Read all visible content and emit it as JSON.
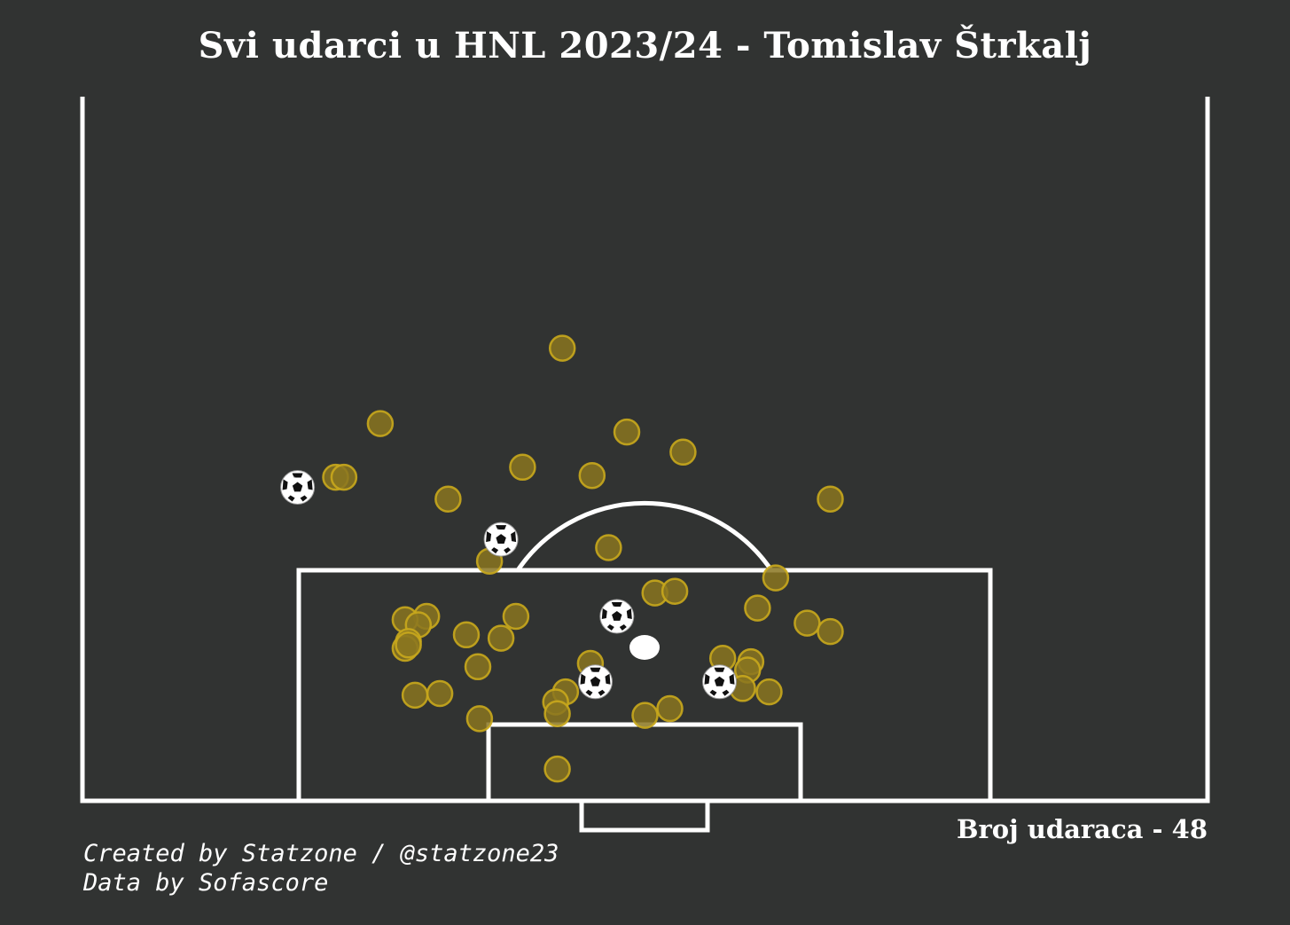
{
  "title": "Svi udarci u HNL 2023/24 - Tomislav Štrkalj",
  "shot_count_label": "Broj udaraca - 48",
  "credits": {
    "created": "Created by Statzone / @statzone23",
    "data": "Data by Sofascore"
  },
  "colors": {
    "background": "#313332",
    "lines": "#ffffff",
    "shot_fill": "#8a7520",
    "shot_edge": "#c9a81c"
  },
  "legend": {
    "shot": "circle",
    "goal": "football-icon"
  },
  "chart_data": {
    "type": "scatter",
    "x_range": [
      0,
      68
    ],
    "y_range": [
      0,
      42
    ],
    "series": [
      {
        "kind": "shot",
        "points": [
          [
            29.0,
            27.0
          ],
          [
            18.0,
            22.5
          ],
          [
            32.9,
            22.0
          ],
          [
            36.3,
            20.8
          ],
          [
            15.3,
            19.3
          ],
          [
            15.8,
            19.3
          ],
          [
            26.6,
            19.9
          ],
          [
            30.8,
            19.4
          ],
          [
            45.2,
            18.0
          ],
          [
            22.1,
            18.0
          ],
          [
            31.8,
            15.1
          ],
          [
            24.6,
            14.3
          ],
          [
            41.9,
            13.3
          ],
          [
            34.6,
            12.4
          ],
          [
            35.8,
            12.5
          ],
          [
            40.8,
            11.5
          ],
          [
            20.8,
            11.0
          ],
          [
            43.8,
            10.6
          ],
          [
            45.2,
            10.1
          ],
          [
            19.5,
            10.8
          ],
          [
            20.3,
            10.5
          ],
          [
            26.2,
            11.0
          ],
          [
            23.2,
            9.9
          ],
          [
            25.3,
            9.7
          ],
          [
            19.7,
            9.5
          ],
          [
            19.5,
            9.1
          ],
          [
            19.7,
            9.3
          ],
          [
            23.9,
            8.0
          ],
          [
            30.7,
            8.2
          ],
          [
            38.7,
            8.5
          ],
          [
            40.4,
            8.3
          ],
          [
            40.2,
            7.8
          ],
          [
            39.9,
            6.7
          ],
          [
            41.5,
            6.5
          ],
          [
            20.1,
            6.3
          ],
          [
            21.6,
            6.4
          ],
          [
            29.2,
            6.5
          ],
          [
            28.6,
            5.9
          ],
          [
            28.7,
            5.2
          ],
          [
            34.0,
            5.1
          ],
          [
            35.5,
            5.5
          ],
          [
            24.0,
            4.9
          ],
          [
            28.7,
            1.9
          ]
        ]
      },
      {
        "kind": "goal",
        "points": [
          [
            13.0,
            18.7
          ],
          [
            25.3,
            15.6
          ],
          [
            32.3,
            11.0
          ],
          [
            31.0,
            7.1
          ],
          [
            38.5,
            7.1
          ]
        ]
      }
    ]
  }
}
